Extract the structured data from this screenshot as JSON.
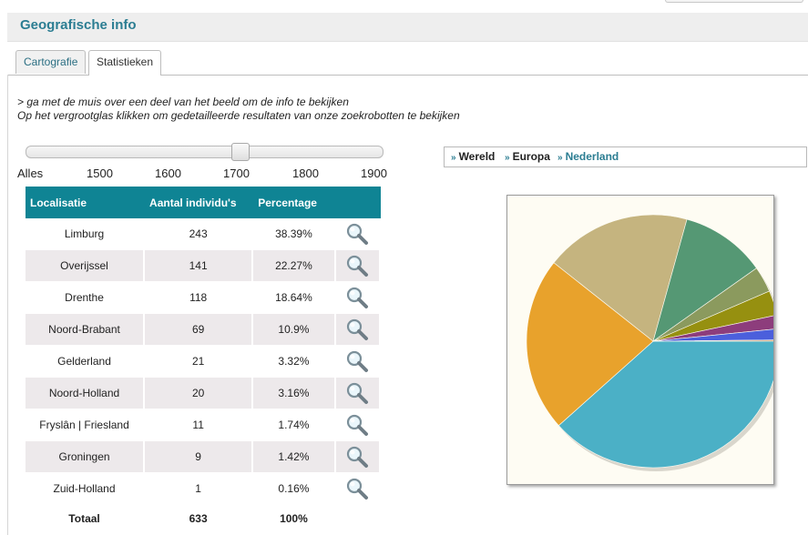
{
  "header": {
    "title": "Geografische info"
  },
  "tabs": [
    {
      "label": "Cartografie",
      "active": false
    },
    {
      "label": "Statistieken",
      "active": true
    }
  ],
  "intro": {
    "line1": "> ga met de muis over een deel van het beeld om de info te bekijken",
    "line2": "Op het vergrootglas klikken om gedetailleerde resultaten van onze zoekrobotten te bekijken"
  },
  "slider": {
    "ticks": [
      "Alles",
      "1500",
      "1600",
      "1700",
      "1800",
      "1900"
    ],
    "value_fraction": 0.6
  },
  "table": {
    "headers": [
      "Localisatie",
      "Aantal individu's",
      "Percentage"
    ],
    "rows": [
      {
        "name": "Limburg",
        "count": "243",
        "pct": "38.39%"
      },
      {
        "name": "Overijssel",
        "count": "141",
        "pct": "22.27%"
      },
      {
        "name": "Drenthe",
        "count": "118",
        "pct": "18.64%"
      },
      {
        "name": "Noord-Brabant",
        "count": "69",
        "pct": "10.9%"
      },
      {
        "name": "Gelderland",
        "count": "21",
        "pct": "3.32%"
      },
      {
        "name": "Noord-Holland",
        "count": "20",
        "pct": "3.16%"
      },
      {
        "name": "Fryslân | Friesland",
        "count": "11",
        "pct": "1.74%"
      },
      {
        "name": "Groningen",
        "count": "9",
        "pct": "1.42%"
      },
      {
        "name": "Zuid-Holland",
        "count": "1",
        "pct": "0.16%"
      }
    ],
    "total": {
      "name": "Totaal",
      "count": "633",
      "pct": "100%"
    }
  },
  "breadcrumb": {
    "items": [
      {
        "label": "Wereld",
        "active": false
      },
      {
        "label": "Europa",
        "active": false
      },
      {
        "label": "Nederland",
        "active": true
      }
    ]
  },
  "colors": {
    "accent": "#2b7d92",
    "table_header": "#0f8494",
    "row_alt": "#ede9eb"
  },
  "chart_data": {
    "type": "pie",
    "categories": [
      "Limburg",
      "Overijssel",
      "Drenthe",
      "Noord-Brabant",
      "Gelderland",
      "Noord-Holland",
      "Fryslân | Friesland",
      "Groningen",
      "Zuid-Holland"
    ],
    "values": [
      38.39,
      22.27,
      18.64,
      10.9,
      3.32,
      3.16,
      1.74,
      1.42,
      0.16
    ],
    "colors": [
      "#4bb0c6",
      "#e8a22c",
      "#c5b47f",
      "#559874",
      "#8b9a5e",
      "#969010",
      "#8d3d7c",
      "#4b5fdc",
      "#d8a064"
    ]
  }
}
